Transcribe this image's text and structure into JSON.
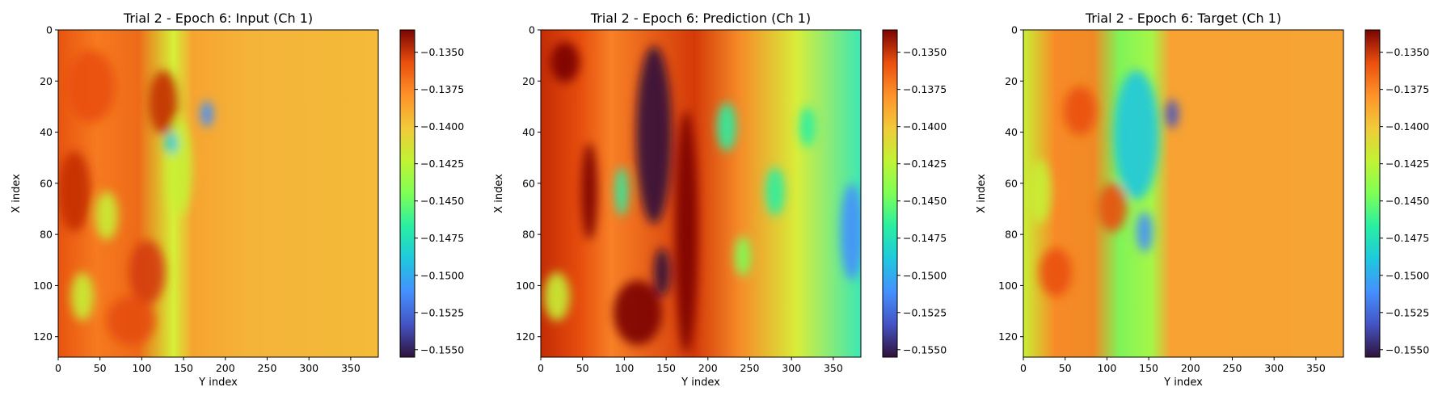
{
  "chart_data": [
    {
      "type": "heatmap",
      "title": "Trial 2 - Epoch 6: Input (Ch 1)",
      "xlabel": "Y index",
      "ylabel": "X index",
      "xlim": [
        0,
        383
      ],
      "ylim": [
        128,
        0
      ],
      "xticks": [
        "0",
        "50",
        "100",
        "150",
        "200",
        "250",
        "300",
        "350"
      ],
      "yticks": [
        "0",
        "20",
        "40",
        "60",
        "80",
        "100",
        "120"
      ],
      "colormap": "turbo",
      "colorbar": {
        "range": [
          -0.1555,
          -0.1335
        ],
        "ticks": [
          "−0.1350",
          "−0.1375",
          "−0.1400",
          "−0.1425",
          "−0.1450",
          "−0.1475",
          "−0.1500",
          "−0.1525",
          "−0.1550"
        ],
        "tick_values": [
          -0.135,
          -0.1375,
          -0.14,
          -0.1425,
          -0.145,
          -0.1475,
          -0.15,
          -0.1525,
          -0.155
        ]
      }
    },
    {
      "type": "heatmap",
      "title": "Trial 2 - Epoch 6: Prediction (Ch 1)",
      "xlabel": "Y index",
      "ylabel": "X index",
      "xlim": [
        0,
        383
      ],
      "ylim": [
        128,
        0
      ],
      "xticks": [
        "0",
        "50",
        "100",
        "150",
        "200",
        "250",
        "300",
        "350"
      ],
      "yticks": [
        "0",
        "20",
        "40",
        "60",
        "80",
        "100",
        "120"
      ],
      "colormap": "turbo",
      "colorbar": {
        "range": [
          -0.1555,
          -0.1335
        ],
        "ticks": [
          "−0.1350",
          "−0.1375",
          "−0.1400",
          "−0.1425",
          "−0.1450",
          "−0.1475",
          "−0.1500",
          "−0.1525",
          "−0.1550"
        ],
        "tick_values": [
          -0.135,
          -0.1375,
          -0.14,
          -0.1425,
          -0.145,
          -0.1475,
          -0.15,
          -0.1525,
          -0.155
        ]
      }
    },
    {
      "type": "heatmap",
      "title": "Trial 2 - Epoch 6: Target (Ch 1)",
      "xlabel": "Y index",
      "ylabel": "X index",
      "xlim": [
        0,
        383
      ],
      "ylim": [
        128,
        0
      ],
      "xticks": [
        "0",
        "50",
        "100",
        "150",
        "200",
        "250",
        "300",
        "350"
      ],
      "yticks": [
        "0",
        "20",
        "40",
        "60",
        "80",
        "100",
        "120"
      ],
      "colormap": "turbo",
      "colorbar": {
        "range": [
          -0.1555,
          -0.1335
        ],
        "ticks": [
          "−0.1350",
          "−0.1375",
          "−0.1400",
          "−0.1425",
          "−0.1450",
          "−0.1475",
          "−0.1500",
          "−0.1525",
          "−0.1550"
        ],
        "tick_values": [
          -0.135,
          -0.1375,
          -0.14,
          -0.1425,
          -0.145,
          -0.1475,
          -0.15,
          -0.1525,
          -0.155
        ]
      }
    }
  ]
}
